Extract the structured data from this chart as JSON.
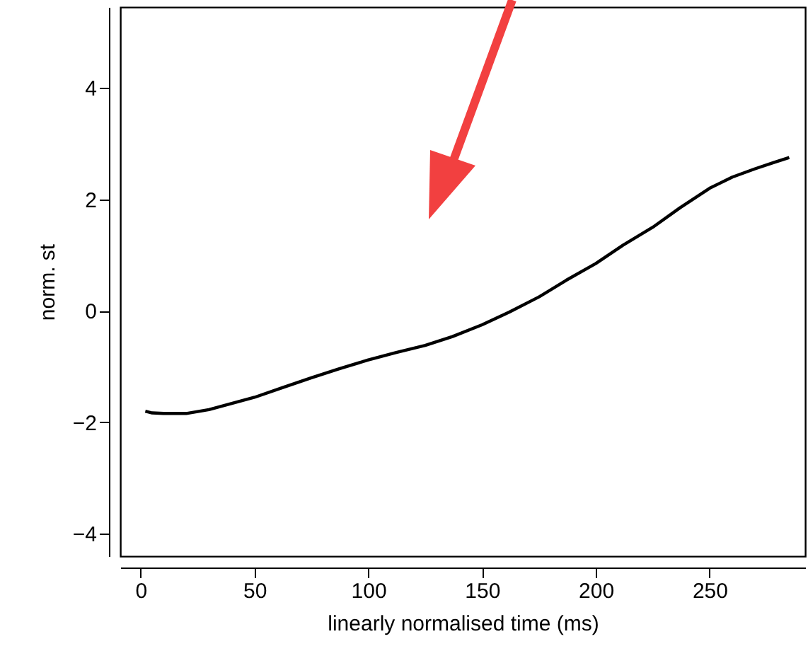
{
  "chart_data": {
    "type": "line",
    "xlabel": "linearly normalised time (ms)",
    "ylabel": "norm. st",
    "x": [
      2,
      5,
      10,
      20,
      30,
      40,
      50,
      62,
      75,
      87,
      100,
      112,
      125,
      137,
      150,
      162,
      175,
      187,
      200,
      212,
      225,
      237,
      250,
      260,
      270,
      278,
      285
    ],
    "series": [
      {
        "color": "#000000",
        "values": [
          -1.8,
          -1.83,
          -1.84,
          -1.84,
          -1.77,
          -1.66,
          -1.55,
          -1.38,
          -1.2,
          -1.04,
          -0.88,
          -0.75,
          -0.62,
          -0.46,
          -0.25,
          -0.02,
          0.25,
          0.55,
          0.85,
          1.18,
          1.5,
          1.85,
          2.2,
          2.4,
          2.55,
          2.66,
          2.75
        ]
      }
    ],
    "xlim": [
      -9,
      292
    ],
    "ylim": [
      -4.4,
      5.45
    ],
    "xticks": [
      0,
      50,
      100,
      150,
      200,
      250
    ],
    "yticks": [
      -4,
      -2,
      0,
      2,
      4
    ],
    "line_style": "solid",
    "marker": "none"
  }
}
